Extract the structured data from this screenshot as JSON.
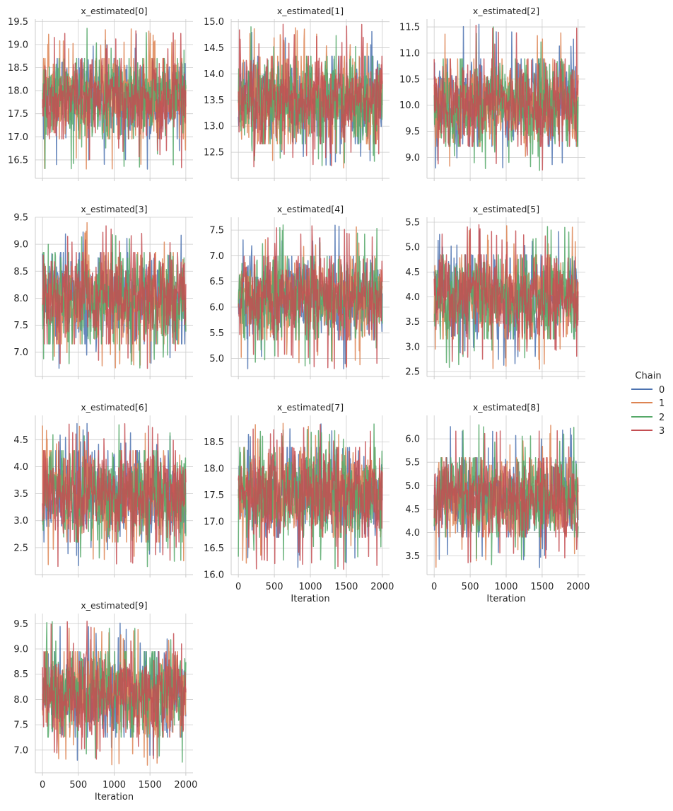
{
  "figure": {
    "legend": {
      "title": "Chain",
      "placement": "right",
      "entries": [
        {
          "label": "0",
          "color": "#4c72b0"
        },
        {
          "label": "1",
          "color": "#dd8452"
        },
        {
          "label": "2",
          "color": "#55a868"
        },
        {
          "label": "3",
          "color": "#c44e52"
        }
      ]
    },
    "grid": true
  },
  "chart_data": [
    {
      "type": "line",
      "title": "x_estimated[0]",
      "xlabel": "",
      "ylabel": "",
      "xlim": [
        -100,
        2100
      ],
      "ylim": [
        16.1,
        19.55
      ],
      "yticks": [
        16.5,
        17.0,
        17.5,
        18.0,
        18.5,
        19.0,
        19.5
      ],
      "xticks": [
        0,
        500,
        1000,
        1500,
        2000
      ],
      "show_x_ticklabels": false,
      "x_range": [
        0,
        2000
      ],
      "center": 17.85,
      "spread": 0.42,
      "band": [
        17.1,
        18.55
      ],
      "extremes": [
        16.3,
        19.35
      ],
      "series": [
        {
          "name": "0"
        },
        {
          "name": "1"
        },
        {
          "name": "2"
        },
        {
          "name": "3"
        }
      ]
    },
    {
      "type": "line",
      "title": "x_estimated[1]",
      "xlabel": "",
      "ylabel": "",
      "xlim": [
        -100,
        2100
      ],
      "ylim": [
        12.0,
        15.05
      ],
      "yticks": [
        12.5,
        13.0,
        13.5,
        14.0,
        14.5,
        15.0
      ],
      "xticks": [
        0,
        500,
        1000,
        1500,
        2000
      ],
      "show_x_ticklabels": false,
      "x_range": [
        0,
        2000
      ],
      "center": 13.5,
      "spread": 0.4,
      "band": [
        12.8,
        14.2
      ],
      "extremes": [
        12.2,
        14.95
      ],
      "series": [
        {
          "name": "0"
        },
        {
          "name": "1"
        },
        {
          "name": "2"
        },
        {
          "name": "3"
        }
      ]
    },
    {
      "type": "line",
      "title": "x_estimated[2]",
      "xlabel": "",
      "ylabel": "",
      "xlim": [
        -100,
        2100
      ],
      "ylim": [
        8.6,
        11.65
      ],
      "yticks": [
        9.0,
        9.5,
        10.0,
        10.5,
        11.0,
        11.5
      ],
      "xticks": [
        0,
        500,
        1000,
        1500,
        2000
      ],
      "show_x_ticklabels": false,
      "x_range": [
        0,
        2000
      ],
      "center": 10.05,
      "spread": 0.4,
      "band": [
        9.35,
        10.75
      ],
      "extremes": [
        8.75,
        11.55
      ],
      "series": [
        {
          "name": "0"
        },
        {
          "name": "1"
        },
        {
          "name": "2"
        },
        {
          "name": "3"
        }
      ]
    },
    {
      "type": "line",
      "title": "x_estimated[3]",
      "xlabel": "",
      "ylabel": "",
      "xlim": [
        -100,
        2100
      ],
      "ylim": [
        6.55,
        9.5
      ],
      "yticks": [
        7.0,
        7.5,
        8.0,
        8.5,
        9.0,
        9.5
      ],
      "xticks": [
        0,
        500,
        1000,
        1500,
        2000
      ],
      "show_x_ticklabels": false,
      "x_range": [
        0,
        2000
      ],
      "center": 8.0,
      "spread": 0.42,
      "band": [
        7.3,
        8.7
      ],
      "extremes": [
        6.7,
        9.4
      ],
      "series": [
        {
          "name": "0"
        },
        {
          "name": "1"
        },
        {
          "name": "2"
        },
        {
          "name": "3"
        }
      ]
    },
    {
      "type": "line",
      "title": "x_estimated[4]",
      "xlabel": "",
      "ylabel": "",
      "xlim": [
        -100,
        2100
      ],
      "ylim": [
        4.65,
        7.75
      ],
      "yticks": [
        5.0,
        5.5,
        6.0,
        6.5,
        7.0,
        7.5
      ],
      "xticks": [
        0,
        500,
        1000,
        1500,
        2000
      ],
      "show_x_ticklabels": false,
      "x_range": [
        0,
        2000
      ],
      "center": 6.2,
      "spread": 0.4,
      "band": [
        5.5,
        6.85
      ],
      "extremes": [
        4.8,
        7.6
      ],
      "series": [
        {
          "name": "0"
        },
        {
          "name": "1"
        },
        {
          "name": "2"
        },
        {
          "name": "3"
        }
      ]
    },
    {
      "type": "line",
      "title": "x_estimated[5]",
      "xlabel": "",
      "ylabel": "",
      "xlim": [
        -100,
        2100
      ],
      "ylim": [
        2.4,
        5.6
      ],
      "yticks": [
        2.5,
        3.0,
        3.5,
        4.0,
        4.5,
        5.0,
        5.5
      ],
      "xticks": [
        0,
        500,
        1000,
        1500,
        2000
      ],
      "show_x_ticklabels": false,
      "x_range": [
        0,
        2000
      ],
      "center": 4.0,
      "spread": 0.42,
      "band": [
        3.3,
        4.7
      ],
      "extremes": [
        2.55,
        5.45
      ],
      "series": [
        {
          "name": "0"
        },
        {
          "name": "1"
        },
        {
          "name": "2"
        },
        {
          "name": "3"
        }
      ]
    },
    {
      "type": "line",
      "title": "x_estimated[6]",
      "xlabel": "",
      "ylabel": "",
      "xlim": [
        -100,
        2100
      ],
      "ylim": [
        2.0,
        4.95
      ],
      "yticks": [
        2.5,
        3.0,
        3.5,
        4.0,
        4.5
      ],
      "xticks": [
        0,
        500,
        1000,
        1500,
        2000
      ],
      "show_x_ticklabels": false,
      "x_range": [
        0,
        2000
      ],
      "center": 3.45,
      "spread": 0.42,
      "band": [
        2.75,
        4.15
      ],
      "extremes": [
        2.15,
        4.8
      ],
      "series": [
        {
          "name": "0"
        },
        {
          "name": "1"
        },
        {
          "name": "2"
        },
        {
          "name": "3"
        }
      ]
    },
    {
      "type": "line",
      "title": "x_estimated[7]",
      "xlabel": "Iteration",
      "ylabel": "",
      "xlim": [
        -100,
        2100
      ],
      "ylim": [
        16.0,
        19.0
      ],
      "yticks": [
        16.0,
        16.5,
        17.0,
        17.5,
        18.0,
        18.5
      ],
      "xticks": [
        0,
        500,
        1000,
        1500,
        2000
      ],
      "show_x_ticklabels": true,
      "x_range": [
        0,
        2000
      ],
      "center": 17.55,
      "spread": 0.42,
      "band": [
        16.85,
        18.25
      ],
      "extremes": [
        16.1,
        18.85
      ],
      "series": [
        {
          "name": "0"
        },
        {
          "name": "1"
        },
        {
          "name": "2"
        },
        {
          "name": "3"
        }
      ]
    },
    {
      "type": "line",
      "title": "x_estimated[8]",
      "xlabel": "Iteration",
      "ylabel": "",
      "xlim": [
        -100,
        2100
      ],
      "ylim": [
        3.1,
        6.5
      ],
      "yticks": [
        3.5,
        4.0,
        4.5,
        5.0,
        5.5,
        6.0
      ],
      "xticks": [
        0,
        500,
        1000,
        1500,
        2000
      ],
      "show_x_ticklabels": true,
      "x_range": [
        0,
        2000
      ],
      "center": 4.75,
      "spread": 0.42,
      "band": [
        4.05,
        5.45
      ],
      "extremes": [
        3.25,
        6.3
      ],
      "series": [
        {
          "name": "0"
        },
        {
          "name": "1"
        },
        {
          "name": "2"
        },
        {
          "name": "3"
        }
      ]
    },
    {
      "type": "line",
      "title": "x_estimated[9]",
      "xlabel": "Iteration",
      "ylabel": "",
      "xlim": [
        -100,
        2100
      ],
      "ylim": [
        6.55,
        9.7
      ],
      "yticks": [
        7.0,
        7.5,
        8.0,
        8.5,
        9.0,
        9.5
      ],
      "xticks": [
        0,
        500,
        1000,
        1500,
        2000
      ],
      "show_x_ticklabels": true,
      "x_range": [
        0,
        2000
      ],
      "center": 8.1,
      "spread": 0.42,
      "band": [
        7.4,
        8.8
      ],
      "extremes": [
        6.7,
        9.55
      ],
      "series": [
        {
          "name": "0"
        },
        {
          "name": "1"
        },
        {
          "name": "2"
        },
        {
          "name": "3"
        }
      ]
    }
  ]
}
